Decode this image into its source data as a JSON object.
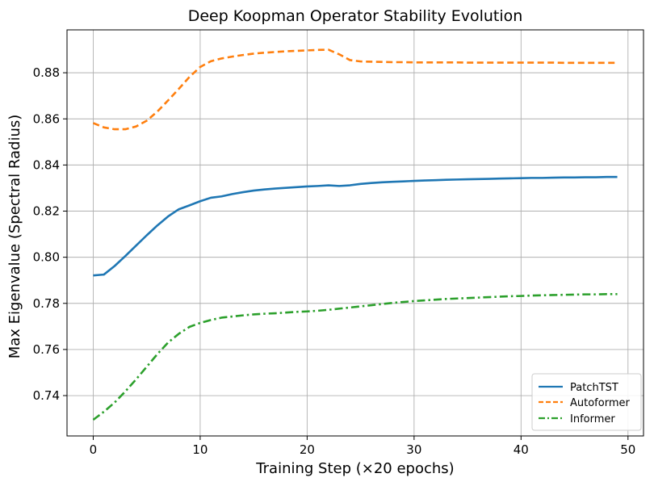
{
  "chart_data": {
    "type": "line",
    "title": "Deep Koopman Operator Stability Evolution",
    "xlabel": "Training Step (×20 epochs)",
    "ylabel": "Max Eigenvalue (Spectral Radius)",
    "xlim": [
      -2.45,
      51.45
    ],
    "ylim": [
      0.7225,
      0.8986
    ],
    "xticks": [
      0,
      10,
      20,
      30,
      40,
      50
    ],
    "yticks": [
      0.74,
      0.76,
      0.78,
      0.8,
      0.82,
      0.84,
      0.86,
      0.88
    ],
    "ytick_labels": [
      "0.74",
      "0.76",
      "0.78",
      "0.80",
      "0.82",
      "0.84",
      "0.86",
      "0.88"
    ],
    "xtick_labels": [
      "0",
      "10",
      "20",
      "30",
      "40",
      "50"
    ],
    "grid": true,
    "legend_position": "lower-right",
    "x": [
      0,
      1,
      2,
      3,
      4,
      5,
      6,
      7,
      8,
      9,
      10,
      11,
      12,
      13,
      14,
      15,
      16,
      17,
      18,
      19,
      20,
      21,
      22,
      23,
      24,
      25,
      26,
      27,
      28,
      29,
      30,
      31,
      32,
      33,
      34,
      35,
      36,
      37,
      38,
      39,
      40,
      41,
      42,
      43,
      44,
      45,
      46,
      47,
      48,
      49
    ],
    "series": [
      {
        "name": "PatchTST",
        "color": "#1f77b4",
        "style": "solid",
        "values": [
          0.7921,
          0.7925,
          0.7962,
          0.8005,
          0.805,
          0.8095,
          0.8138,
          0.8177,
          0.8208,
          0.8225,
          0.8243,
          0.8258,
          0.8264,
          0.8274,
          0.8282,
          0.8289,
          0.8294,
          0.8298,
          0.8301,
          0.8304,
          0.8307,
          0.8309,
          0.8312,
          0.8309,
          0.8312,
          0.8318,
          0.8322,
          0.8325,
          0.8327,
          0.8329,
          0.8331,
          0.8333,
          0.8334,
          0.8336,
          0.8337,
          0.8338,
          0.8339,
          0.834,
          0.8341,
          0.8342,
          0.8343,
          0.8344,
          0.8344,
          0.8345,
          0.8346,
          0.8346,
          0.8347,
          0.8347,
          0.8348,
          0.8348
        ]
      },
      {
        "name": "Autoformer",
        "color": "#ff7f0e",
        "style": "dashed",
        "values": [
          0.8582,
          0.8563,
          0.8555,
          0.8555,
          0.8567,
          0.8592,
          0.8632,
          0.868,
          0.873,
          0.8782,
          0.8825,
          0.885,
          0.8862,
          0.887,
          0.8877,
          0.8883,
          0.8887,
          0.889,
          0.8893,
          0.8895,
          0.8897,
          0.8899,
          0.89,
          0.888,
          0.8855,
          0.8849,
          0.8848,
          0.8847,
          0.8846,
          0.8846,
          0.8845,
          0.8845,
          0.8845,
          0.8845,
          0.8845,
          0.8844,
          0.8844,
          0.8844,
          0.8844,
          0.8844,
          0.8844,
          0.8844,
          0.8844,
          0.8844,
          0.8843,
          0.8843,
          0.8843,
          0.8843,
          0.8843,
          0.8843
        ]
      },
      {
        "name": "Informer",
        "color": "#2ca02c",
        "style": "dashdot",
        "values": [
          0.7295,
          0.733,
          0.737,
          0.7418,
          0.747,
          0.7525,
          0.758,
          0.763,
          0.7668,
          0.7698,
          0.7715,
          0.7728,
          0.7738,
          0.7743,
          0.7748,
          0.7752,
          0.7755,
          0.7757,
          0.776,
          0.7763,
          0.7765,
          0.7768,
          0.7772,
          0.7777,
          0.7782,
          0.7787,
          0.7792,
          0.7797,
          0.7802,
          0.7806,
          0.781,
          0.7813,
          0.7816,
          0.7819,
          0.7821,
          0.7823,
          0.7825,
          0.7827,
          0.7829,
          0.7831,
          0.7832,
          0.7834,
          0.7835,
          0.7836,
          0.7837,
          0.7838,
          0.7839,
          0.7839,
          0.784,
          0.784
        ]
      }
    ]
  }
}
